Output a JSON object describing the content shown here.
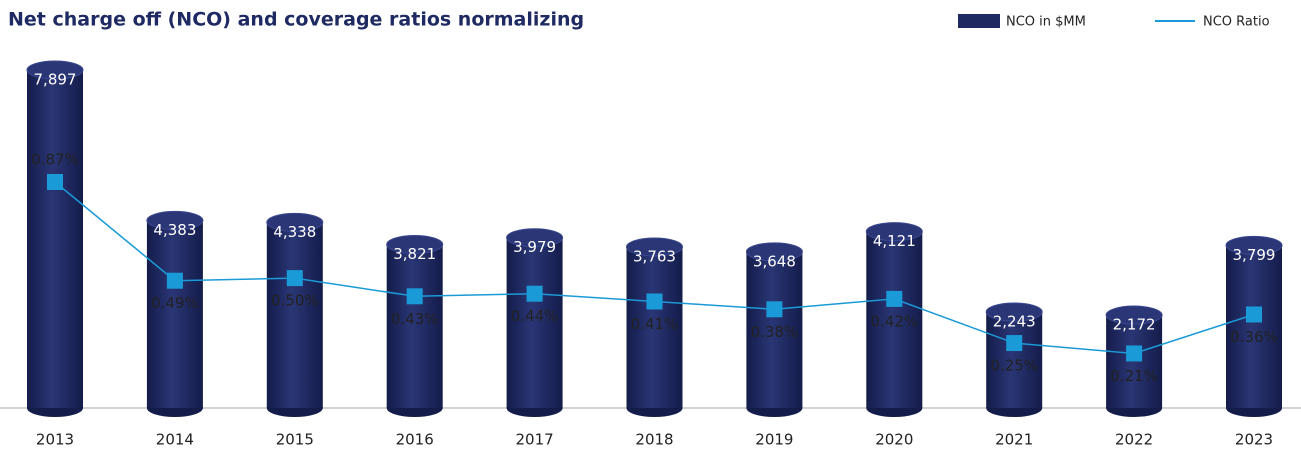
{
  "chart_data": {
    "type": "bar_line",
    "title": "Net charge off (NCO) and coverage ratios normalizing",
    "categories": [
      "2013",
      "2014",
      "2015",
      "2016",
      "2017",
      "2018",
      "2019",
      "2020",
      "2021",
      "2022",
      "2023"
    ],
    "series": [
      {
        "name": "NCO in $MM",
        "type": "bar",
        "color": "#1f2a63",
        "values": [
          7897,
          4383,
          4338,
          3821,
          3979,
          3763,
          3648,
          4121,
          2243,
          2172,
          3799
        ],
        "value_labels": [
          "7,897",
          "4,383",
          "4,338",
          "3,821",
          "3,979",
          "3,763",
          "3,648",
          "4,121",
          "2,243",
          "2,172",
          "3,799"
        ]
      },
      {
        "name": "NCO Ratio",
        "type": "line",
        "color": "#1a9ad6",
        "values": [
          0.87,
          0.49,
          0.5,
          0.43,
          0.44,
          0.41,
          0.38,
          0.42,
          0.25,
          0.21,
          0.36
        ],
        "value_labels": [
          "0.87%",
          "0.49%",
          "0.50%",
          "0.43%",
          "0.44%",
          "0.41%",
          "0.38%",
          "0.42%",
          "0.25%",
          "0.21%",
          "0.36%"
        ]
      }
    ]
  }
}
